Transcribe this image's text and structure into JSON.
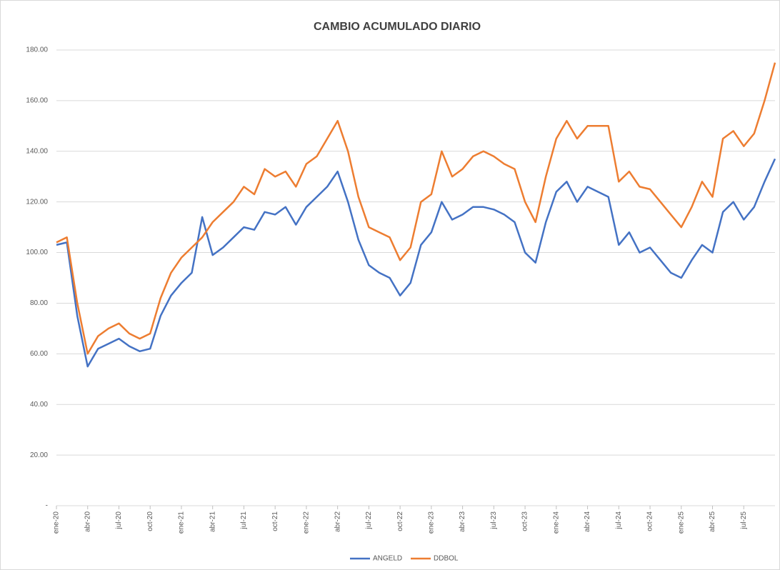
{
  "chart_data": {
    "type": "line",
    "title": "CAMBIO ACUMULADO DIARIO",
    "categories": [
      "ene-20",
      null,
      null,
      "abr-20",
      null,
      null,
      "jul-20",
      null,
      null,
      "oct-20",
      null,
      null,
      "ene-21",
      null,
      null,
      "abr-21",
      null,
      null,
      "jul-21",
      null,
      null,
      "oct-21",
      null,
      null,
      "ene-22",
      null,
      null,
      "abr-22",
      null,
      null,
      "jul-22",
      null,
      null,
      "oct-22",
      null,
      null,
      "ene-23",
      null,
      null,
      "abr-23",
      null,
      null,
      "jul-23",
      null,
      null,
      "oct-23",
      null,
      null,
      "ene-24",
      null,
      null,
      "abr-24",
      null,
      null,
      "jul-24",
      null,
      null,
      "oct-24",
      null,
      null,
      "ene-25",
      null,
      null,
      "abr-25",
      null,
      null,
      "jul-25",
      null,
      null,
      null
    ],
    "series": [
      {
        "name": "ANGELD",
        "color": "#4472c4",
        "values": [
          103,
          104,
          75,
          55,
          62,
          64,
          66,
          63,
          61,
          62,
          75,
          83,
          88,
          92,
          114,
          99,
          102,
          106,
          110,
          109,
          116,
          115,
          118,
          111,
          118,
          122,
          126,
          132,
          120,
          105,
          95,
          92,
          90,
          83,
          88,
          103,
          108,
          120,
          113,
          115,
          118,
          118,
          117,
          115,
          112,
          100,
          96,
          112,
          124,
          128,
          120,
          126,
          124,
          122,
          103,
          108,
          100,
          102,
          97,
          92,
          90,
          97,
          103,
          100,
          116,
          120,
          113,
          118,
          128,
          137
        ]
      },
      {
        "name": "DDBOL",
        "color": "#ed7d31",
        "values": [
          104,
          106,
          80,
          60,
          67,
          70,
          72,
          68,
          66,
          68,
          82,
          92,
          98,
          102,
          106,
          112,
          116,
          120,
          126,
          123,
          133,
          130,
          132,
          126,
          135,
          138,
          145,
          152,
          140,
          122,
          110,
          108,
          106,
          97,
          102,
          120,
          123,
          140,
          130,
          133,
          138,
          140,
          138,
          135,
          133,
          120,
          112,
          130,
          145,
          152,
          145,
          150,
          150,
          150,
          128,
          132,
          126,
          125,
          120,
          115,
          110,
          118,
          128,
          122,
          145,
          148,
          142,
          147,
          160,
          175
        ]
      }
    ],
    "ylim": [
      0,
      180
    ],
    "yticks": [
      {
        "value": 0,
        "label": "-"
      },
      {
        "value": 20,
        "label": "20.00"
      },
      {
        "value": 40,
        "label": "40.00"
      },
      {
        "value": 60,
        "label": "60.00"
      },
      {
        "value": 80,
        "label": "80.00"
      },
      {
        "value": 100,
        "label": "100.00"
      },
      {
        "value": 120,
        "label": "120.00"
      },
      {
        "value": 140,
        "label": "140.00"
      },
      {
        "value": 160,
        "label": "160.00"
      },
      {
        "value": 180,
        "label": "180.00"
      }
    ],
    "grid": true,
    "legend": "bottom"
  }
}
